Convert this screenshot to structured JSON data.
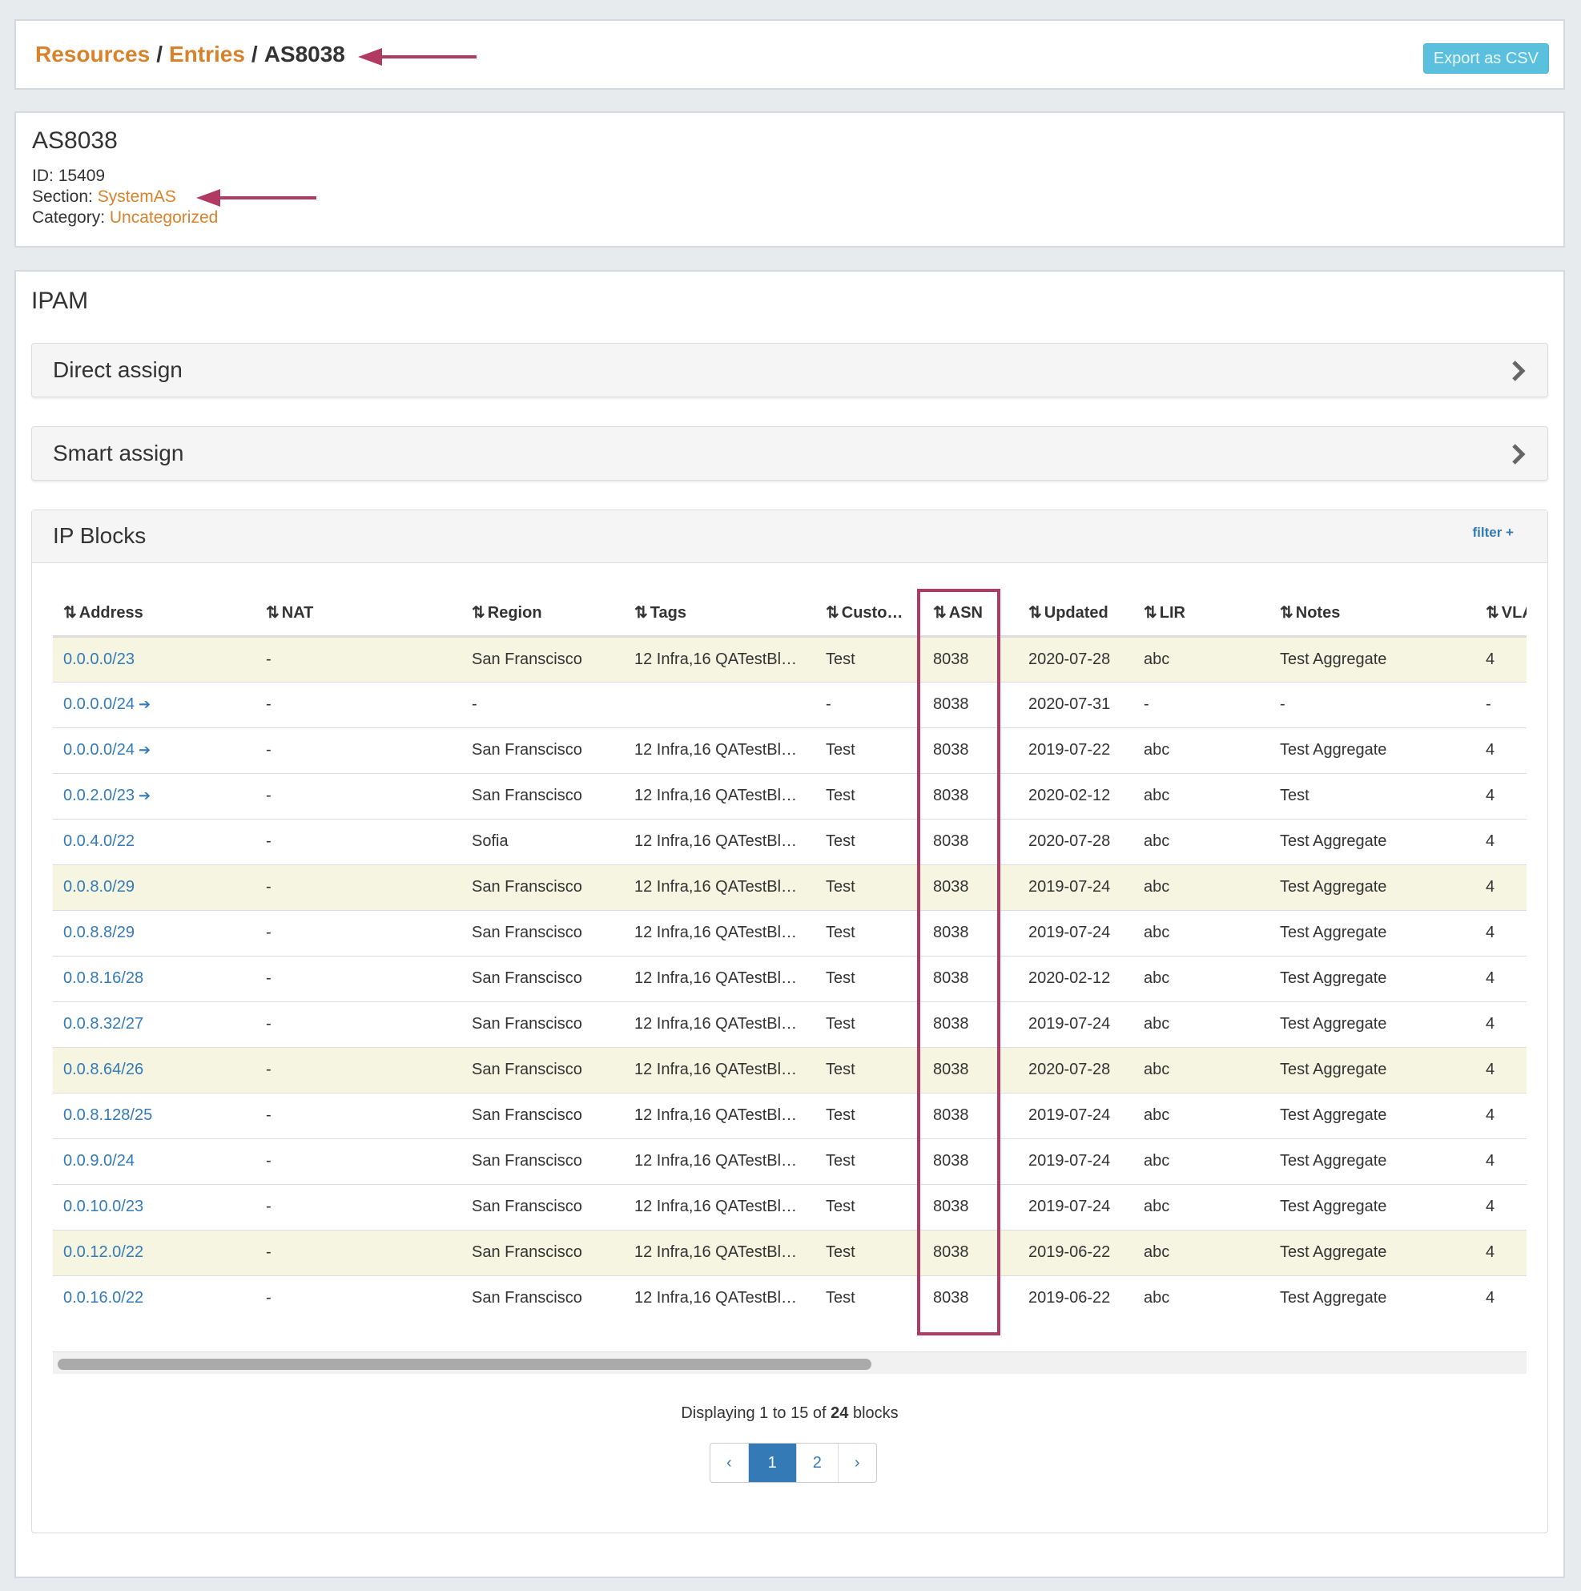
{
  "breadcrumb": {
    "items": [
      "Resources",
      "Entries",
      "AS8038"
    ],
    "separator": "/"
  },
  "export_button": "Export as CSV",
  "entry": {
    "title": "AS8038",
    "fields": [
      {
        "label": "ID:",
        "value": "15409",
        "link": false
      },
      {
        "label": "Section:",
        "value": "SystemAS",
        "link": true
      },
      {
        "label": "Category:",
        "value": "Uncategorized",
        "link": true
      }
    ]
  },
  "ipam": {
    "title": "IPAM",
    "panels": [
      "Direct assign",
      "Smart assign"
    ],
    "blocks": {
      "title": "IP Blocks",
      "filter": "filter +",
      "columns": [
        "Address",
        "NAT",
        "Region",
        "Tags",
        "Custo…",
        "ASN",
        "Updated",
        "LIR",
        "Notes",
        "VLAN"
      ],
      "rows": [
        {
          "highlight": true,
          "linked": false,
          "cells": [
            "0.0.0.0/23",
            "-",
            "San Franscisco",
            "12 Infra,16 QATestBl…",
            "Test",
            "8038",
            "2020-07-28",
            "abc",
            "Test Aggregate",
            "4"
          ]
        },
        {
          "highlight": false,
          "linked": true,
          "cells": [
            "0.0.0.0/24",
            "-",
            "-",
            null,
            "-",
            "8038",
            "2020-07-31",
            "-",
            "-",
            "-"
          ]
        },
        {
          "highlight": false,
          "linked": true,
          "cells": [
            "0.0.0.0/24",
            "-",
            "San Franscisco",
            "12 Infra,16 QATestBl…",
            "Test",
            "8038",
            "2019-07-22",
            "abc",
            "Test Aggregate",
            "4"
          ]
        },
        {
          "highlight": false,
          "linked": true,
          "cells": [
            "0.0.2.0/23",
            "-",
            "San Franscisco",
            "12 Infra,16 QATestBl…",
            "Test",
            "8038",
            "2020-02-12",
            "abc",
            "Test",
            "4"
          ]
        },
        {
          "highlight": false,
          "linked": false,
          "cells": [
            "0.0.4.0/22",
            "-",
            "Sofia",
            "12 Infra,16 QATestBl…",
            "Test",
            "8038",
            "2020-07-28",
            "abc",
            "Test Aggregate",
            "4"
          ]
        },
        {
          "highlight": true,
          "linked": false,
          "cells": [
            "0.0.8.0/29",
            "-",
            "San Franscisco",
            "12 Infra,16 QATestBl…",
            "Test",
            "8038",
            "2019-07-24",
            "abc",
            "Test Aggregate",
            "4"
          ]
        },
        {
          "highlight": false,
          "linked": false,
          "cells": [
            "0.0.8.8/29",
            "-",
            "San Franscisco",
            "12 Infra,16 QATestBl…",
            "Test",
            "8038",
            "2019-07-24",
            "abc",
            "Test Aggregate",
            "4"
          ]
        },
        {
          "highlight": false,
          "linked": false,
          "cells": [
            "0.0.8.16/28",
            "-",
            "San Franscisco",
            "12 Infra,16 QATestBl…",
            "Test",
            "8038",
            "2020-02-12",
            "abc",
            "Test Aggregate",
            "4"
          ]
        },
        {
          "highlight": false,
          "linked": false,
          "cells": [
            "0.0.8.32/27",
            "-",
            "San Franscisco",
            "12 Infra,16 QATestBl…",
            "Test",
            "8038",
            "2019-07-24",
            "abc",
            "Test Aggregate",
            "4"
          ]
        },
        {
          "highlight": true,
          "linked": false,
          "cells": [
            "0.0.8.64/26",
            "-",
            "San Franscisco",
            "12 Infra,16 QATestBl…",
            "Test",
            "8038",
            "2020-07-28",
            "abc",
            "Test Aggregate",
            "4"
          ]
        },
        {
          "highlight": false,
          "linked": false,
          "cells": [
            "0.0.8.128/25",
            "-",
            "San Franscisco",
            "12 Infra,16 QATestBl…",
            "Test",
            "8038",
            "2019-07-24",
            "abc",
            "Test Aggregate",
            "4"
          ]
        },
        {
          "highlight": false,
          "linked": false,
          "cells": [
            "0.0.9.0/24",
            "-",
            "San Franscisco",
            "12 Infra,16 QATestBl…",
            "Test",
            "8038",
            "2019-07-24",
            "abc",
            "Test Aggregate",
            "4"
          ]
        },
        {
          "highlight": false,
          "linked": false,
          "cells": [
            "0.0.10.0/23",
            "-",
            "San Franscisco",
            "12 Infra,16 QATestBl…",
            "Test",
            "8038",
            "2019-07-24",
            "abc",
            "Test Aggregate",
            "4"
          ]
        },
        {
          "highlight": true,
          "linked": false,
          "cells": [
            "0.0.12.0/22",
            "-",
            "San Franscisco",
            "12 Infra,16 QATestBl…",
            "Test",
            "8038",
            "2019-06-22",
            "abc",
            "Test Aggregate",
            "4"
          ]
        },
        {
          "highlight": false,
          "linked": false,
          "cells": [
            "0.0.16.0/22",
            "-",
            "San Franscisco",
            "12 Infra,16 QATestBl…",
            "Test",
            "8038",
            "2019-06-22",
            "abc",
            "Test Aggregate",
            "4"
          ]
        }
      ],
      "summary": [
        "Displaying 1 to 15 of ",
        "24",
        " blocks"
      ],
      "pagination": {
        "items": [
          "‹",
          "1",
          "2",
          "›"
        ],
        "active": 1
      }
    }
  }
}
